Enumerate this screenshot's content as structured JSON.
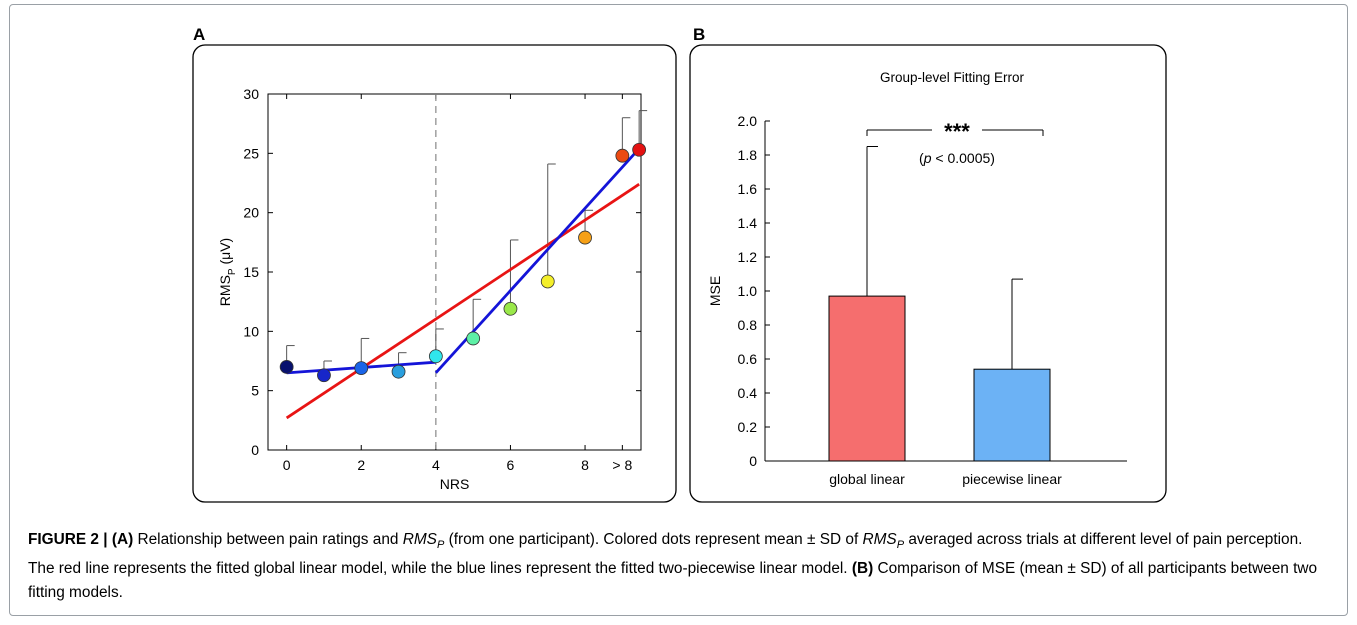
{
  "chart_data": [
    {
      "panel": "A",
      "type": "scatter",
      "xlabel": "NRS",
      "ylabel": "RMS",
      "ylabel_sub": "P",
      "ylabel_unit": "(μV)",
      "xlim": [
        -0.5,
        9.5
      ],
      "ylim": [
        0,
        30
      ],
      "x_ticks": [
        0,
        2,
        4,
        6,
        8,
        9
      ],
      "x_tick_labels": [
        "0",
        "2",
        "4",
        "6",
        "8",
        "> 8"
      ],
      "y_ticks": [
        0,
        5,
        10,
        15,
        20,
        25,
        30
      ],
      "y_tick_labels": [
        "0",
        "5",
        "10",
        "15",
        "20",
        "25",
        "30"
      ],
      "grid": false,
      "breakpoint_x": 4,
      "points": [
        {
          "x": 0,
          "y": 7.0,
          "sd": 1.8,
          "color": "#08116e"
        },
        {
          "x": 1,
          "y": 6.3,
          "sd": 1.2,
          "color": "#1726c9"
        },
        {
          "x": 2,
          "y": 6.9,
          "sd": 2.5,
          "color": "#1a64e8"
        },
        {
          "x": 3,
          "y": 6.6,
          "sd": 1.6,
          "color": "#2a9fde"
        },
        {
          "x": 4,
          "y": 7.9,
          "sd": 2.3,
          "color": "#30e6ec"
        },
        {
          "x": 5,
          "y": 9.4,
          "sd": 3.3,
          "color": "#5ef0a6"
        },
        {
          "x": 6,
          "y": 11.9,
          "sd": 5.8,
          "color": "#9ae84a"
        },
        {
          "x": 7,
          "y": 14.2,
          "sd": 9.9,
          "color": "#f4ef2a"
        },
        {
          "x": 8,
          "y": 17.9,
          "sd": 2.3,
          "color": "#f6a016"
        },
        {
          "x": 9,
          "y": 24.8,
          "sd": 3.2,
          "color": "#ec4a12"
        },
        {
          "x": 9,
          "y": 25.3,
          "sd": 3.3,
          "color": "#e41212",
          "slot": 9.45
        }
      ],
      "fit_lines": [
        {
          "model": "global linear",
          "color": "#e81414",
          "x": [
            0,
            9
          ],
          "y": [
            2.7,
            22.4
          ]
        },
        {
          "model": "piecewise segment 1",
          "color": "#1414d8",
          "x": [
            0,
            4
          ],
          "y": [
            6.5,
            7.4
          ]
        },
        {
          "model": "piecewise segment 2",
          "color": "#1414d8",
          "x": [
            4,
            9
          ],
          "y": [
            6.5,
            25.4
          ]
        }
      ]
    },
    {
      "panel": "B",
      "type": "bar",
      "title": "Group-level Fitting Error",
      "ylabel": "MSE",
      "ylim": [
        0,
        2.0
      ],
      "y_ticks": [
        0,
        0.2,
        0.4,
        0.6,
        0.8,
        1.0,
        1.2,
        1.4,
        1.6,
        1.8,
        2.0
      ],
      "y_tick_labels": [
        "0",
        "0.2",
        "0.4",
        "0.6",
        "0.8",
        "1.0",
        "1.2",
        "1.4",
        "1.6",
        "1.8",
        "2.0"
      ],
      "categories": [
        "global linear",
        "piecewise linear"
      ],
      "values": [
        0.97,
        0.54
      ],
      "errors": [
        0.88,
        0.53
      ],
      "colors": [
        "#f56e6e",
        "#6cb2f5"
      ],
      "significance": "***",
      "p_label_pre": "(",
      "p_label_var": "p",
      "p_label_post": " < 0.0005)"
    }
  ],
  "panel_labels": {
    "a": "A",
    "b": "B"
  },
  "caption": {
    "fig": "FIGURE 2 |",
    "a_tag": "(A)",
    "t1": " Relationship between pain ratings and ",
    "rms": "RMS",
    "p": "P",
    "t2": " (from one participant). Colored dots represent mean ± SD of ",
    "t3": " averaged across trials at different level of pain perception. The red line represents the fitted global linear model, while the blue lines represent the fitted two-piecewise linear model. ",
    "b_tag": "(B)",
    "t4": " Comparison of MSE (mean ± SD) of all participants between two fitting models."
  }
}
